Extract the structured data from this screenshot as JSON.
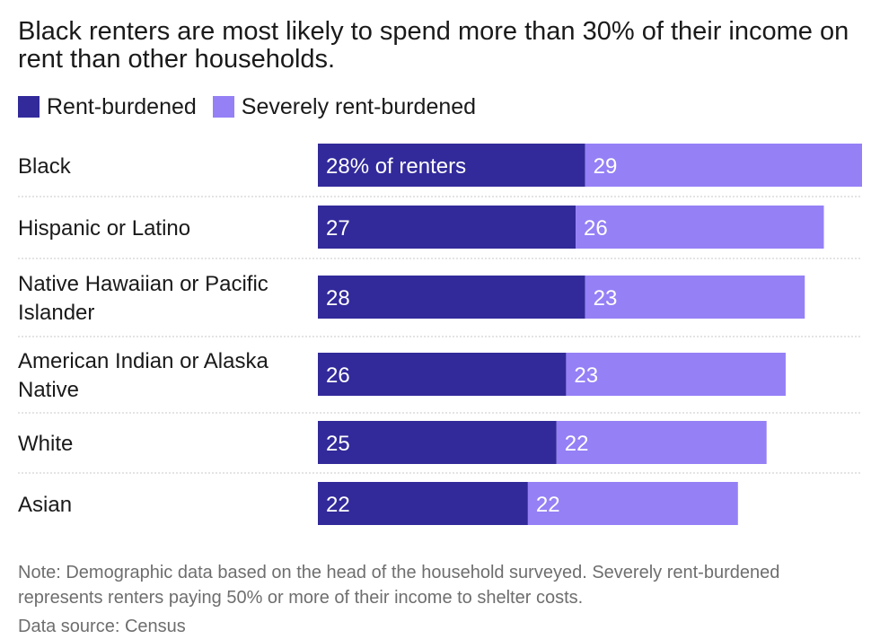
{
  "title": "Black renters are most likely to spend more than 30% of their income on rent than other households.",
  "note": "Note: Demographic data based on the head of the household surveyed. Severely rent-burdened represents renters paying 50% or more of their income to shelter costs.",
  "source": "Data source: Census",
  "colors": {
    "rent_burdened": "#322a9a",
    "severely_rent_burdened": "#9580f6"
  },
  "chart_data": {
    "type": "bar",
    "orientation": "horizontal",
    "stacked": true,
    "categories": [
      [
        "Black"
      ],
      [
        "Hispanic or Latino"
      ],
      [
        "Native Hawaiian or Pacific",
        "Islander"
      ],
      [
        "American Indian or Alaska",
        "Native"
      ],
      [
        "White"
      ],
      [
        "Asian"
      ]
    ],
    "series": [
      {
        "name": "Rent-burdened",
        "values": [
          28,
          27,
          28,
          26,
          25,
          22
        ],
        "labels": [
          "28% of renters",
          "27",
          "28",
          "26",
          "25",
          "22"
        ]
      },
      {
        "name": "Severely rent-burdened",
        "values": [
          29,
          26,
          23,
          23,
          22,
          22
        ],
        "labels": [
          "29",
          "26",
          "23",
          "23",
          "22",
          "22"
        ]
      }
    ],
    "xlim": [
      0,
      57
    ],
    "legend_position": "top-left",
    "grid": false
  }
}
